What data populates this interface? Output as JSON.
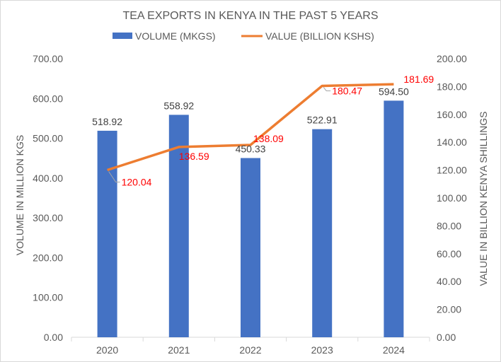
{
  "chart_data": {
    "type": "bar",
    "title": "TEA EXPORTS IN KENYA IN THE PAST 5 YEARS",
    "categories": [
      "2020",
      "2021",
      "2022",
      "2023",
      "2024"
    ],
    "series": [
      {
        "name": "VOLUME (MKGS)",
        "type": "bar",
        "axis": "left",
        "color": "#4472c4",
        "values": [
          518.92,
          558.92,
          450.33,
          522.91,
          594.5
        ],
        "labels": [
          "518.92",
          "558.92",
          "450.33",
          "522.91",
          "594.50"
        ]
      },
      {
        "name": "VALUE (BILLION KSHS)",
        "type": "line",
        "axis": "right",
        "color": "#ed7d31",
        "label_color": "#ff0000",
        "values": [
          120.04,
          136.59,
          138.09,
          180.47,
          181.69
        ],
        "labels": [
          "120.04",
          "136.59",
          "138.09",
          "180.47",
          "181.69"
        ]
      }
    ],
    "ylabel": "VOLUME IN MILLION KGS",
    "ylabel_right": "VALUE IN BILLION KENYA SHILLINGS",
    "ylim": [
      0,
      700
    ],
    "ylim_right": [
      0,
      200
    ],
    "yticks": [
      "0.00",
      "100.00",
      "200.00",
      "300.00",
      "400.00",
      "500.00",
      "600.00",
      "700.00"
    ],
    "yticks_right": [
      "0.00",
      "20.00",
      "40.00",
      "60.00",
      "80.00",
      "100.00",
      "120.00",
      "140.00",
      "160.00",
      "180.00",
      "200.00"
    ],
    "grid": false,
    "legend": "top"
  }
}
